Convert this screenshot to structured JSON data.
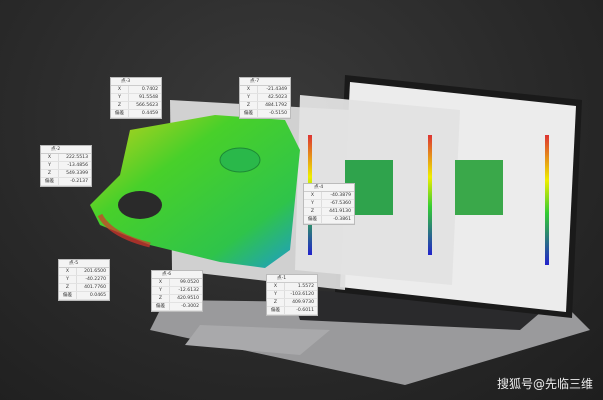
{
  "row_labels": {
    "x": "X",
    "y": "Y",
    "z": "Z",
    "dev": "偏差"
  },
  "callouts": [
    {
      "title": "点-3",
      "x": "0.7402",
      "y": "91.5548",
      "z": "566.5623",
      "dev": "0.4459"
    },
    {
      "title": "点-7",
      "x": "-21.4349",
      "y": "42.5023",
      "z": "484.1792",
      "dev": "-0.5150"
    },
    {
      "title": "点-2",
      "x": "222.5513",
      "y": "-13.4856",
      "z": "549.3399",
      "dev": "-0.2137"
    },
    {
      "title": "点-4",
      "x": "-40.3879",
      "y": "-67.5360",
      "z": "441.9130",
      "dev": "-0.3861"
    },
    {
      "title": "点-5",
      "x": "201.6500",
      "y": "-40.2270",
      "z": "401.7760",
      "dev": "0.0465"
    },
    {
      "title": "点-6",
      "x": "99.0520",
      "y": "-12.6132",
      "z": "420.9510",
      "dev": "-0.3002"
    },
    {
      "title": "点-1",
      "x": "1.5572",
      "y": "-103.6120",
      "z": "409.9730",
      "dev": "-0.6011"
    }
  ],
  "watermark": "搜狐号@先临三维",
  "colors": {
    "scan_green": "#3ccf2a",
    "scan_yellow": "#d8d01a",
    "scan_blue": "#1e9ad0",
    "deviation_red": "#d8332a"
  }
}
